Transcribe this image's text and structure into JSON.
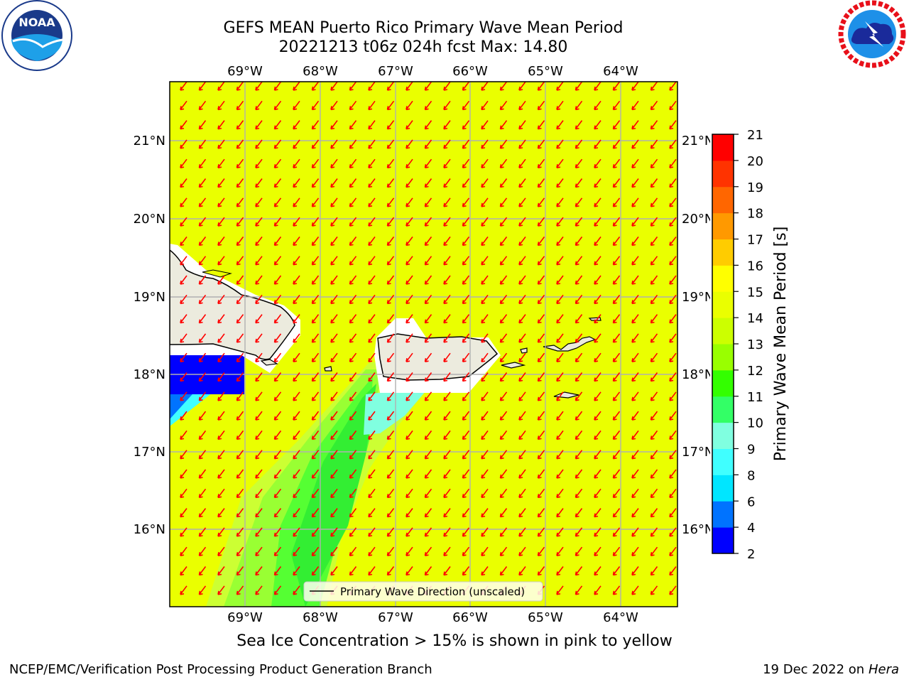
{
  "header": {
    "title_line1": "GEFS MEAN Puerto Rico Primary Wave Mean Period",
    "title_line2": "20221213 t06z 024h fcst   Max: 14.80"
  },
  "logos": {
    "left": {
      "name": "NOAA",
      "ring_text": "NATIONAL OCEANIC AND ATMOSPHERIC ADMINISTRATION · U.S. DEPARTMENT OF COMMERCE"
    },
    "right": {
      "name": "National Weather Service",
      "ring_text": "NATIONAL WEATHER SERVICE"
    }
  },
  "map": {
    "lon_labels": [
      "69°W",
      "68°W",
      "67°W",
      "66°W",
      "65°W",
      "64°W"
    ],
    "lat_labels": [
      "21°N",
      "20°N",
      "19°N",
      "18°N",
      "17°N",
      "16°N"
    ],
    "legend_label": "Primary Wave Direction (unscaled)",
    "wave_direction_color": "#ff0000",
    "background_color": "#eaff00",
    "land_color": "#ecebde"
  },
  "colorbar": {
    "label": "Primary Wave Mean Period [s]",
    "ticks": [
      "2",
      "4",
      "6",
      "8",
      "9",
      "10",
      "11",
      "12",
      "13",
      "14",
      "15",
      "16",
      "17",
      "18",
      "19",
      "20",
      "21"
    ],
    "colors": [
      "#0000ff",
      "#0073ff",
      "#00e6ff",
      "#40ffff",
      "#80ffe0",
      "#33ff66",
      "#33ff00",
      "#99ff00",
      "#ccff00",
      "#eaff00",
      "#ffff00",
      "#ffcc00",
      "#ff9900",
      "#ff6600",
      "#ff3300",
      "#ff0000"
    ]
  },
  "footer": {
    "sea_ice_note": "Sea Ice Concentration > 15% is shown in pink to yellow",
    "credit": "NCEP/EMC/Verification Post Processing Product Generation Branch",
    "date_prefix": "19 Dec 2022 on",
    "date_host": "Hera"
  }
}
